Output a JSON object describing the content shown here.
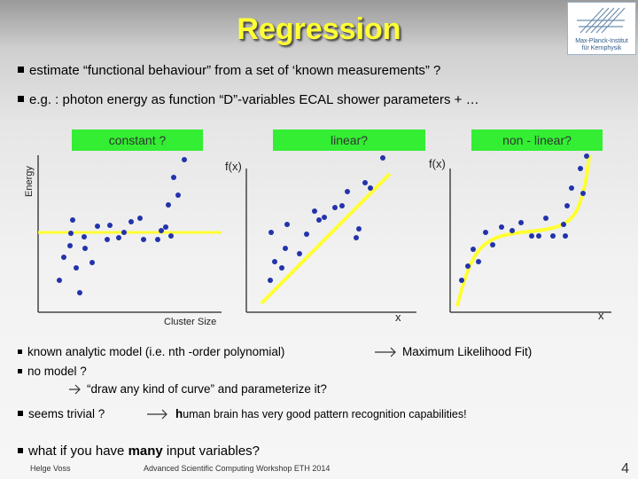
{
  "title": "Regression",
  "logo": {
    "line1": "Max-Planck-Institut",
    "line2": "für Kernphysik"
  },
  "bullets": {
    "b1": "estimate “functional behaviour” from a set of ‘known measurements” ?",
    "b2": "e.g. : photon energy as function “D”-variables  ECAL shower parameters + …"
  },
  "plots": {
    "constant_label": "constant ?",
    "linear_label": "linear?",
    "nonlinear_label": "non - linear?",
    "energy_axis": "Energy",
    "cluster_axis": "Cluster Size",
    "fx1": "f(x)",
    "fx2": "f(x)",
    "x1": "x",
    "x2": "x"
  },
  "lower": {
    "l1": "known analytic model (i.e. nth -order polynomial)",
    "l1b": "Maximum Likelihood Fit)",
    "l2": "no model ?",
    "l3": "“draw any kind of curve” and parameterize it?",
    "l4a": "seems trivial ?",
    "l4b_bold": "h",
    "l4b": "uman brain has very good pattern recognition capabilities!",
    "l5a": "what if you have ",
    "l5b": "many",
    "l5c": " input variables?"
  },
  "footer": {
    "author": "Helge Voss",
    "event": "Advanced Scientific Computing Workshop ETH 2014",
    "page": "4"
  },
  "colors": {
    "title": "#ffff33",
    "label_bg": "#33ee33",
    "fit_line": "#ffff33",
    "points": "#2233aa"
  }
}
